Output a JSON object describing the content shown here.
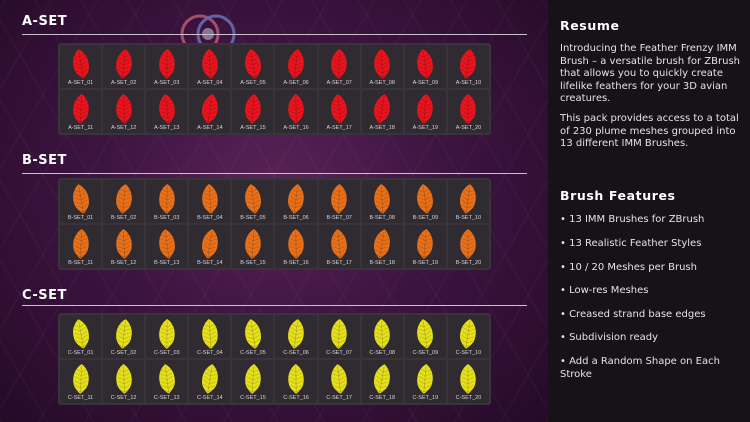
{
  "sets": [
    {
      "title": "A-SET",
      "color": "#e8141e",
      "cells": [
        "A-SET_01",
        "A-SET_02",
        "A-SET_03",
        "A-SET_04",
        "A-SET_05",
        "A-SET_06",
        "A-SET_07",
        "A-SET_08",
        "A-SET_09",
        "A-SET_10",
        "A-SET_11",
        "A-SET_12",
        "A-SET_13",
        "A-SET_14",
        "A-SET_15",
        "A-SET_16",
        "A-SET_17",
        "A-SET_18",
        "A-SET_19",
        "A-SET_20"
      ]
    },
    {
      "title": "B-SET",
      "color": "#e8701a",
      "cells": [
        "B-SET_01",
        "B-SET_02",
        "B-SET_03",
        "B-SET_04",
        "B-SET_05",
        "B-SET_06",
        "B-SET_07",
        "B-SET_08",
        "B-SET_09",
        "B-SET_10",
        "B-SET_11",
        "B-SET_12",
        "B-SET_13",
        "B-SET_14",
        "B-SET_15",
        "B-SET_16",
        "B-SET_17",
        "B-SET_18",
        "B-SET_19",
        "B-SET_20"
      ]
    },
    {
      "title": "C-SET",
      "color": "#e6e01c",
      "cells": [
        "C-SET_01",
        "C-SET_02",
        "C-SET_03",
        "C-SET_04",
        "C-SET_05",
        "C-SET_06",
        "C-SET_07",
        "C-SET_08",
        "C-SET_09",
        "C-SET_10",
        "C-SET_11",
        "C-SET_12",
        "C-SET_13",
        "C-SET_14",
        "C-SET_15",
        "C-SET_16",
        "C-SET_17",
        "C-SET_18",
        "C-SET_19",
        "C-SET_20"
      ]
    }
  ],
  "resume": {
    "title": "Resume",
    "para1": "Introducing the Feather Frenzy IMM Brush – a versatile brush for ZBrush that allows you to quickly create lifelike feathers for your 3D avian creatures.",
    "para2": "This pack provides access to a total of 230 plume meshes grouped into 13 different IMM Brushes."
  },
  "features": {
    "title": "Brush Features",
    "items": [
      "• 13 IMM Brushes for ZBrush",
      "• 13 Realistic Feather Styles",
      "• 10 / 20 Meshes per Brush",
      "• Low-res Meshes",
      "• Creased strand base edges",
      "• Subdivision ready",
      "• Add a Random Shape on Each Stroke"
    ]
  },
  "icons": {
    "watermark": "watermark-logo-icon",
    "feather": "feather-icon"
  }
}
